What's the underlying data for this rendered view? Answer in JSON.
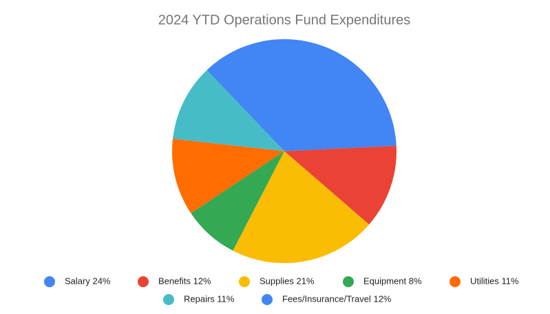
{
  "chart_data": {
    "type": "pie",
    "title": "2024 YTD Operations Fund Expenditures",
    "categories": [
      "Salary 24%",
      "Benefits 12%",
      "Supplies 21%",
      "Equipment 8%",
      "Utilities 11%",
      "Repairs 11%",
      "Fees/Insurance/Travel 12%"
    ],
    "values": [
      24,
      12,
      21,
      8,
      11,
      11,
      12
    ],
    "colors": [
      "#4285f4",
      "#ea4335",
      "#fbbc04",
      "#34a853",
      "#ff6d01",
      "#46bdc6",
      "#4285f4"
    ],
    "legend": "bottom"
  }
}
